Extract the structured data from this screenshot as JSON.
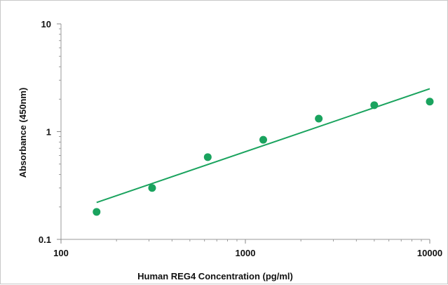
{
  "chart_data": {
    "type": "scatter",
    "title": "",
    "xlabel": "Human REG4 Concentration (pg/ml)",
    "ylabel": "Absorbance (450nm)",
    "x_scale": "log",
    "y_scale": "log",
    "xlim": [
      100,
      10000
    ],
    "ylim": [
      0.1,
      10
    ],
    "x_ticks": [
      100,
      1000,
      10000
    ],
    "x_tick_labels": [
      "100",
      "1000",
      "10000"
    ],
    "y_ticks": [
      0.1,
      1,
      10
    ],
    "y_tick_labels": [
      "0.1",
      "1",
      "10"
    ],
    "grid": false,
    "legend": "none",
    "series": [
      {
        "x": [
          156,
          312,
          625,
          1250,
          2500,
          5000,
          10000
        ],
        "y": [
          0.18,
          0.3,
          0.58,
          0.84,
          1.32,
          1.76,
          1.9
        ],
        "color": "#1aa35e"
      }
    ],
    "trendline": {
      "type": "power",
      "x": [
        156,
        10000
      ],
      "y": [
        0.22,
        2.5
      ],
      "color": "#1aa35e"
    }
  }
}
